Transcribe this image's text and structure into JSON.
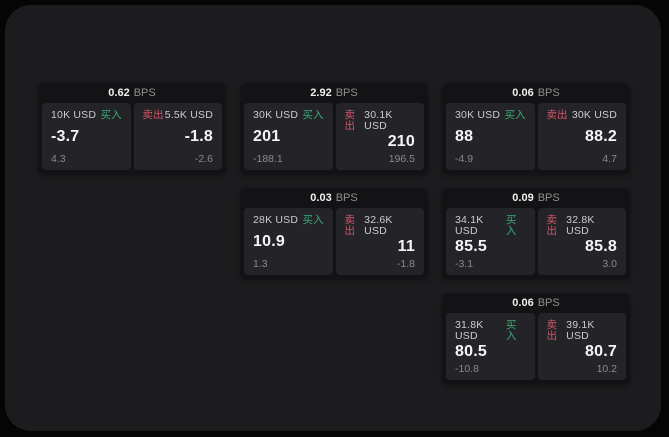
{
  "app": {
    "background": "#050505",
    "surface": "#1c1c1e",
    "card_background": "#131315",
    "panel_background": "#242428",
    "buy_color": "#3cab74",
    "sell_color": "#d15566",
    "buy_label": "买入",
    "sell_label": "卖出",
    "bps_label": "BPS"
  },
  "cards": [
    {
      "row": 1,
      "col": 1,
      "spread": "0.62",
      "buy_amount": "10K USD",
      "buy_price": "-3.7",
      "buy_delta": "4.3",
      "sell_amount": "5.5K USD",
      "sell_price": "-1.8",
      "sell_delta": "-2.6"
    },
    {
      "row": 1,
      "col": 2,
      "spread": "2.92",
      "buy_amount": "30K USD",
      "buy_price": "201",
      "buy_delta": "-188.1",
      "sell_amount": "30.1K USD",
      "sell_price": "210",
      "sell_delta": "196.5"
    },
    {
      "row": 1,
      "col": 3,
      "spread": "0.06",
      "buy_amount": "30K USD",
      "buy_price": "88",
      "buy_delta": "-4.9",
      "sell_amount": "30K USD",
      "sell_price": "88.2",
      "sell_delta": "4.7"
    },
    {
      "row": 2,
      "col": 2,
      "spread": "0.03",
      "buy_amount": "28K USD",
      "buy_price": "10.9",
      "buy_delta": "1.3",
      "sell_amount": "32.6K USD",
      "sell_price": "11",
      "sell_delta": "-1.8"
    },
    {
      "row": 2,
      "col": 3,
      "spread": "0.09",
      "buy_amount": "34.1K USD",
      "buy_price": "85.5",
      "buy_delta": "-3.1",
      "sell_amount": "32.8K USD",
      "sell_price": "85.8",
      "sell_delta": "3.0"
    },
    {
      "row": 3,
      "col": 3,
      "spread": "0.06",
      "buy_amount": "31.8K USD",
      "buy_price": "80.5",
      "buy_delta": "-10.8",
      "sell_amount": "39.1K USD",
      "sell_price": "80.7",
      "sell_delta": "10.2"
    }
  ]
}
